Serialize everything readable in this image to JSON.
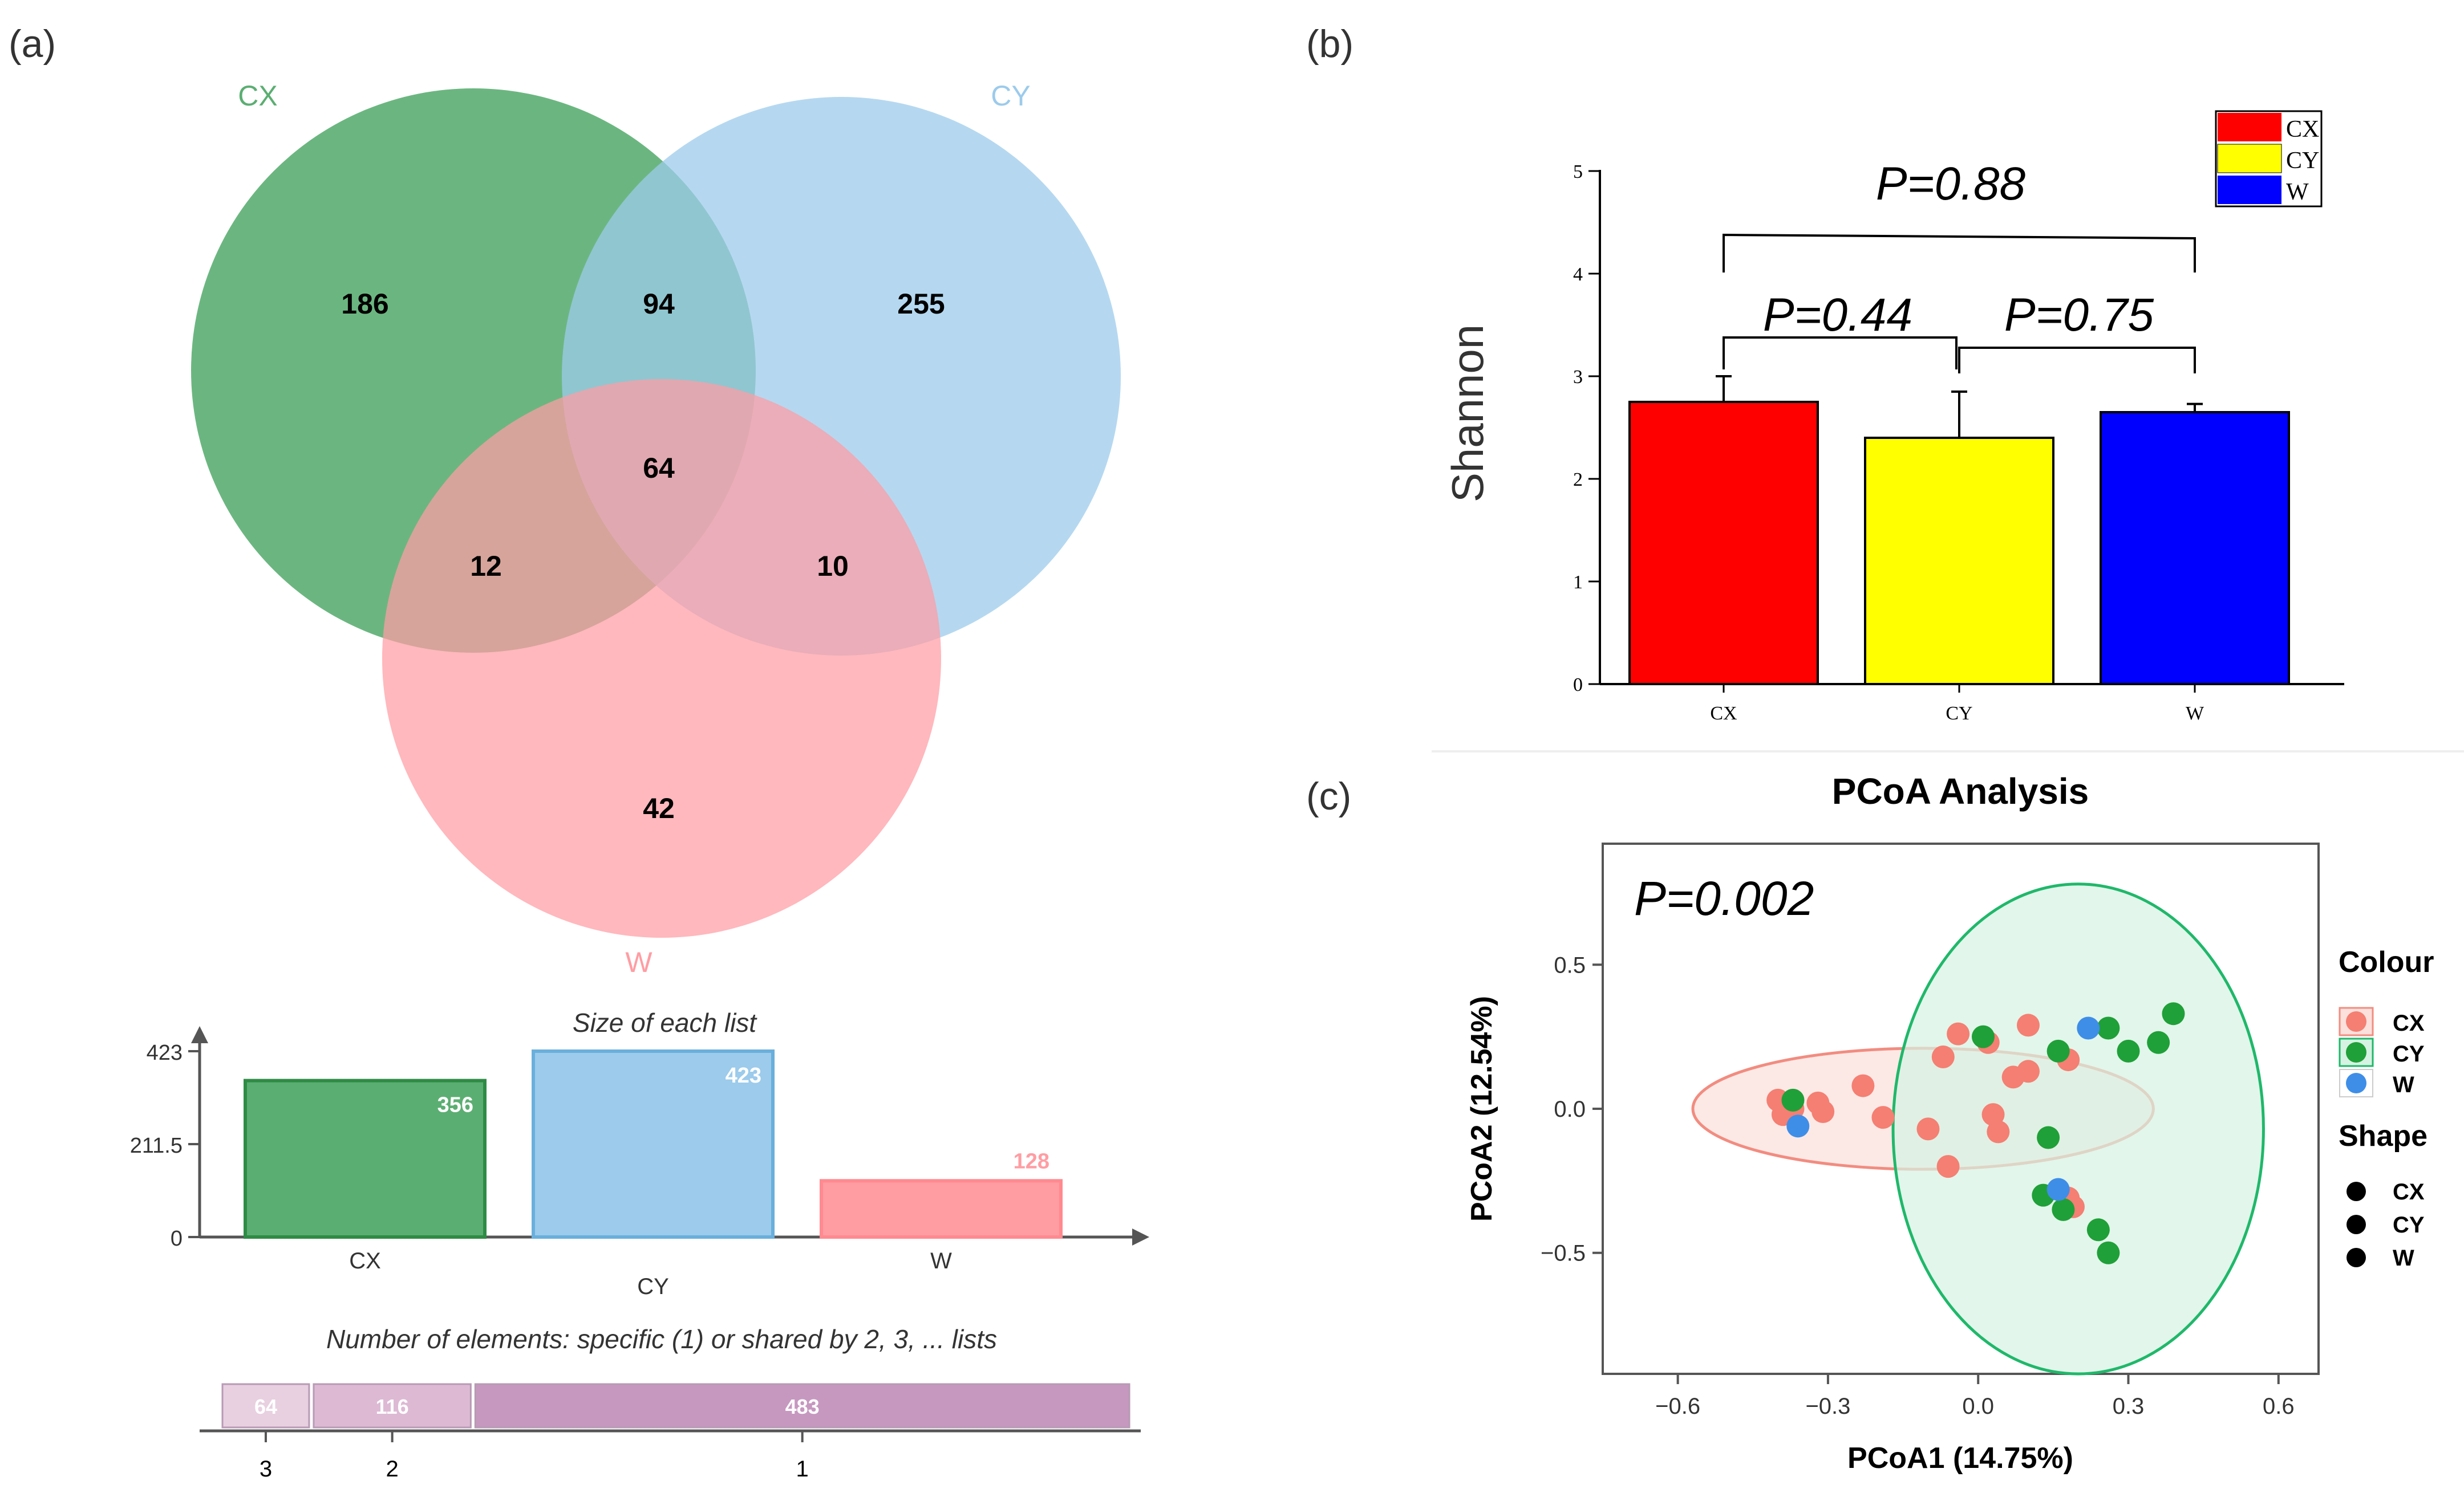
{
  "panels": {
    "a": {
      "label": "(a)"
    },
    "b": {
      "label": "(b)"
    },
    "c": {
      "label": "(c)"
    }
  },
  "chart_data": [
    {
      "type": "venn",
      "panel": "a",
      "sets": [
        {
          "name": "CX",
          "color": "#5BAE72"
        },
        {
          "name": "CY",
          "color": "#9CCBEB"
        },
        {
          "name": "W",
          "color": "#FF9DA3"
        }
      ],
      "regions": [
        {
          "sets": [
            "CX"
          ],
          "value": 186
        },
        {
          "sets": [
            "CY"
          ],
          "value": 255
        },
        {
          "sets": [
            "W"
          ],
          "value": 42
        },
        {
          "sets": [
            "CX",
            "CY"
          ],
          "value": 94
        },
        {
          "sets": [
            "CX",
            "W"
          ],
          "value": 12
        },
        {
          "sets": [
            "CY",
            "W"
          ],
          "value": 10
        },
        {
          "sets": [
            "CX",
            "CY",
            "W"
          ],
          "value": 64
        }
      ]
    },
    {
      "type": "bar",
      "panel": "a",
      "title": "Size of each list",
      "categories": [
        "CX",
        "CY",
        "W"
      ],
      "values": [
        356,
        423,
        128
      ],
      "yticks": [
        0,
        211.5,
        423
      ],
      "ytick_labels": [
        "0",
        "211.5",
        "423"
      ],
      "ylim": [
        0,
        480
      ],
      "colors": [
        "#5BAE72",
        "#9CCBEB",
        "#FF9DA3"
      ],
      "border_colors": [
        "#2E8B45",
        "#6AAFDC",
        "#FF8A90"
      ],
      "label_colors": [
        "#ffffff",
        "#ffffff",
        "#FF9DA3"
      ]
    },
    {
      "type": "bar",
      "orientation": "horizontal-stacked",
      "panel": "a",
      "title": "Number of elements: specific (1) or shared by 2, 3, ... lists",
      "segments": [
        {
          "category": "3",
          "value": 64,
          "color": "#E8D0E0"
        },
        {
          "category": "2",
          "value": 116,
          "color": "#DDB9D4"
        },
        {
          "category": "1",
          "value": 483,
          "color": "#C698C0"
        }
      ]
    },
    {
      "type": "bar",
      "panel": "b",
      "categories": [
        "CX",
        "CY",
        "W"
      ],
      "values": [
        2.75,
        2.4,
        2.65
      ],
      "errors": [
        0.25,
        0.45,
        0.08
      ],
      "colors": [
        "#FF0000",
        "#FFFF00",
        "#0000FF"
      ],
      "ylabel": "Shannon",
      "xlabel": "",
      "ylim": [
        0,
        5
      ],
      "yticks": [
        0,
        1,
        2,
        3,
        4,
        5
      ],
      "legend": {
        "position": "top-right",
        "entries": [
          "CX",
          "CY",
          "W"
        ]
      },
      "annotations": [
        {
          "text": "P=0.88",
          "between": [
            "CX",
            "W"
          ]
        },
        {
          "text": "P=0.44",
          "between": [
            "CX",
            "CY"
          ]
        },
        {
          "text": "P=0.75",
          "between": [
            "CY",
            "W"
          ]
        }
      ]
    },
    {
      "type": "scatter",
      "panel": "c",
      "title": "PCoA Analysis",
      "xlabel": "PCoA1 (14.75%)",
      "ylabel": "PCoA2 (12.54%)",
      "xlim": [
        -0.75,
        0.68
      ],
      "ylim": [
        -0.92,
        0.92
      ],
      "xticks": [
        -0.6,
        -0.3,
        0.0,
        0.3,
        0.6
      ],
      "xtick_labels": [
        "−0.6",
        "−0.3",
        "0.0",
        "0.3",
        "0.6"
      ],
      "yticks": [
        -0.5,
        0.0,
        0.5
      ],
      "ytick_labels": [
        "−0.5",
        "0.0",
        "0.5"
      ],
      "annotation": "P=0.002",
      "legend": {
        "colour_title": "Colour",
        "shape_title": "Shape",
        "entries": [
          "CX",
          "CY",
          "W"
        ]
      },
      "series": [
        {
          "name": "CX",
          "color": "#F47F72",
          "points": [
            [
              -0.4,
              0.03
            ],
            [
              -0.39,
              -0.02
            ],
            [
              -0.37,
              0.0
            ],
            [
              -0.32,
              0.02
            ],
            [
              -0.31,
              -0.01
            ],
            [
              -0.23,
              0.08
            ],
            [
              -0.19,
              -0.03
            ],
            [
              -0.1,
              -0.07
            ],
            [
              -0.07,
              0.18
            ],
            [
              -0.06,
              -0.2
            ],
            [
              -0.04,
              0.26
            ],
            [
              0.02,
              0.23
            ],
            [
              0.03,
              -0.02
            ],
            [
              0.04,
              -0.08
            ],
            [
              0.07,
              0.11
            ],
            [
              0.1,
              0.29
            ],
            [
              0.1,
              0.13
            ],
            [
              0.18,
              0.17
            ],
            [
              0.18,
              -0.31
            ],
            [
              0.19,
              -0.34
            ]
          ]
        },
        {
          "name": "CY",
          "color": "#1FA038",
          "points": [
            [
              -0.37,
              0.03
            ],
            [
              0.01,
              0.25
            ],
            [
              0.14,
              -0.1
            ],
            [
              0.16,
              0.2
            ],
            [
              0.26,
              0.28
            ],
            [
              0.3,
              0.2
            ],
            [
              0.36,
              0.23
            ],
            [
              0.39,
              0.33
            ],
            [
              0.13,
              -0.3
            ],
            [
              0.17,
              -0.35
            ],
            [
              0.24,
              -0.42
            ],
            [
              0.26,
              -0.5
            ]
          ]
        },
        {
          "name": "W",
          "color": "#3E8EE8",
          "points": [
            [
              -0.36,
              -0.06
            ],
            [
              0.22,
              0.28
            ],
            [
              0.16,
              -0.28
            ]
          ]
        }
      ],
      "ellipses": [
        {
          "group": "CX",
          "center": [
            -0.11,
            0.0
          ],
          "rx": 0.46,
          "ry": 0.21,
          "angle": 0,
          "fill": "#FBE0DC",
          "stroke": "#F28C80"
        },
        {
          "group": "CY",
          "center": [
            0.2,
            -0.07
          ],
          "rx": 0.37,
          "ry": 0.85,
          "angle": 0,
          "fill": "#D6F2E2",
          "stroke": "#1FB86A"
        }
      ]
    }
  ]
}
